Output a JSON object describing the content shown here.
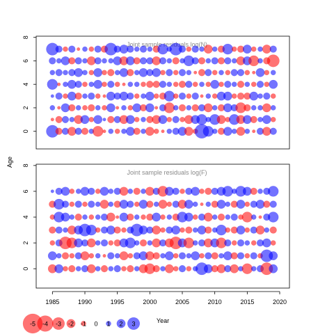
{
  "colors": {
    "negative": "#ff0000",
    "positive": "#0000ff",
    "bubble_alpha": 0.55,
    "title": "#8a8a8a",
    "frame": "#000000"
  },
  "chart_data": {
    "type": "scatter",
    "encoding": "bubble",
    "x_axis": {
      "title": "Year",
      "ticks": [
        1985,
        1990,
        1995,
        2000,
        2005,
        2010,
        2015,
        2020
      ],
      "tick_labels": [
        "1985",
        "1990",
        "1995",
        "2000",
        "2005",
        "2010",
        "2015",
        "2020"
      ],
      "range": [
        1982.5,
        2021.5
      ]
    },
    "y_axis": {
      "title": "Age"
    },
    "panels": [
      {
        "title": "Joint sample residuals log(N)",
        "ylim": [
          -1.5,
          8.1
        ],
        "y_ticks": [
          0,
          2,
          4,
          6,
          8
        ],
        "y_tick_labels": [
          "0",
          "2",
          "4",
          "6",
          "8"
        ],
        "years": [
          1985,
          1986,
          1987,
          1988,
          1989,
          1990,
          1991,
          1992,
          1993,
          1994,
          1995,
          1996,
          1997,
          1998,
          1999,
          2000,
          2001,
          2002,
          2003,
          2004,
          2005,
          2006,
          2007,
          2008,
          2009,
          2010,
          2011,
          2012,
          2013,
          2014,
          2015,
          2016,
          2017,
          2018,
          2019
        ],
        "ages": [
          0,
          1,
          2,
          3,
          4,
          5,
          6,
          7
        ],
        "residuals": [
          [
            3.0,
            -1.5,
            1.5,
            -2.0,
            1.5,
            -1.5,
            1.0,
            -2.5,
            -0.5,
            1.0,
            -1.0,
            1.0,
            2.0,
            -1.5,
            1.0,
            -2.0,
            -1.0,
            -0.5,
            1.0,
            1.5,
            2.0,
            -2.0,
            -1.0,
            3.5,
            2.5,
            1.0,
            -1.5,
            2.0,
            1.0,
            -2.0,
            1.0,
            -0.5,
            1.5,
            -2.0,
            1.5
          ],
          [
            -0.5,
            -1.5,
            1.5,
            1.0,
            -2.0,
            2.0,
            -1.0,
            2.0,
            0.5,
            -1.5,
            1.5,
            -2.0,
            2.0,
            -1.0,
            1.0,
            -1.5,
            -2.0,
            2.0,
            -1.0,
            1.5,
            -1.0,
            -2.0,
            2.0,
            2.5,
            1.0,
            2.5,
            -2.0,
            -1.0,
            2.5,
            -2.0,
            2.0,
            -1.5,
            1.0,
            2.0,
            -1.0
          ],
          [
            1.0,
            -0.5,
            2.0,
            -1.5,
            1.0,
            -1.0,
            -1.5,
            1.0,
            -1.0,
            2.0,
            -0.5,
            1.0,
            -1.0,
            2.0,
            -1.5,
            2.0,
            -0.5,
            1.5,
            -2.5,
            1.0,
            -1.5,
            1.0,
            -1.5,
            1.5,
            -2.0,
            1.0,
            -1.5,
            2.0,
            1.5,
            -2.5,
            -1.5,
            1.0,
            1.0,
            -2.0,
            1.0
          ],
          [
            0.5,
            1.5,
            -1.0,
            2.0,
            -1.5,
            1.0,
            1.5,
            -1.0,
            -0.5,
            2.0,
            1.5,
            2.0,
            1.5,
            -1.0,
            1.0,
            2.0,
            -1.0,
            -1.5,
            2.5,
            -1.0,
            1.5,
            -1.0,
            1.5,
            -0.5,
            1.0,
            -1.0,
            2.0,
            2.0,
            -1.0,
            -1.5,
            -1.5,
            2.0,
            1.0,
            1.5,
            -1.0
          ],
          [
            2.5,
            -0.5,
            1.0,
            2.0,
            1.5,
            -1.0,
            1.0,
            2.0,
            -1.0,
            1.5,
            -1.0,
            -0.5,
            1.0,
            1.0,
            -1.0,
            -1.5,
            -1.5,
            1.5,
            1.0,
            -1.0,
            -1.5,
            1.5,
            -1.0,
            1.0,
            -1.0,
            2.0,
            -1.0,
            1.5,
            1.0,
            -1.5,
            1.0,
            -1.0,
            1.5,
            -1.0,
            2.0
          ],
          [
            1.0,
            1.5,
            1.0,
            1.5,
            2.0,
            1.0,
            -1.0,
            2.0,
            -1.0,
            -1.5,
            1.0,
            2.0,
            -1.5,
            1.0,
            2.0,
            1.5,
            2.0,
            -1.0,
            1.5,
            -1.0,
            1.5,
            1.0,
            -0.5,
            -1.5,
            1.5,
            -1.0,
            1.0,
            -1.0,
            1.5,
            1.5,
            -1.0,
            -0.5,
            2.0,
            -1.0,
            1.0
          ],
          [
            1.5,
            1.0,
            2.0,
            -1.5,
            1.5,
            1.0,
            -2.0,
            1.5,
            1.0,
            1.0,
            2.0,
            -2.0,
            2.0,
            -1.5,
            1.5,
            1.5,
            -2.0,
            1.5,
            1.0,
            -1.5,
            1.0,
            2.5,
            1.5,
            -1.5,
            1.0,
            1.5,
            -1.5,
            1.5,
            1.0,
            -2.0,
            2.0,
            -2.5,
            1.0,
            -1.5,
            -3.0
          ],
          [
            3.0,
            1.5,
            -1.0,
            1.5,
            -0.5,
            1.0,
            -1.0,
            1.5,
            -1.5,
            3.0,
            1.5,
            2.0,
            1.5,
            1.0,
            1.5,
            1.0,
            -1.5,
            2.5,
            1.0,
            3.0,
            1.5,
            -1.0,
            1.5,
            1.0,
            -2.0,
            1.0,
            -1.5,
            2.5,
            -1.0,
            -1.5,
            2.0,
            -1.0,
            1.0,
            -2.0,
            1.5
          ]
        ]
      },
      {
        "title": "Joint sample residuals log(F)",
        "ylim": [
          -1.5,
          8.1
        ],
        "y_ticks": [
          0,
          2,
          4,
          6,
          8
        ],
        "y_tick_labels": [
          "0",
          "2",
          "4",
          "6",
          "8"
        ],
        "years": [
          1985,
          1986,
          1987,
          1988,
          1989,
          1990,
          1991,
          1992,
          1993,
          1994,
          1995,
          1996,
          1997,
          1998,
          1999,
          2000,
          2001,
          2002,
          2003,
          2004,
          2005,
          2006,
          2007,
          2008,
          2009,
          2010,
          2011,
          2012,
          2013,
          2014,
          2015,
          2016,
          2017,
          2018,
          2019
        ],
        "ages": [
          0,
          1,
          2,
          3,
          4,
          5,
          6
        ],
        "residuals": [
          [
            -2.0,
            2.0,
            -1.0,
            -1.5,
            1.0,
            1.5,
            -2.0,
            1.0,
            -1.5,
            1.0,
            1.5,
            -1.0,
            -1.5,
            1.0,
            -2.0,
            -2.5,
            -1.5,
            1.0,
            -2.0,
            -1.0,
            1.5,
            -1.0,
            1.0,
            3.0,
            2.0,
            -1.5,
            -2.0,
            1.5,
            -2.0,
            1.0,
            -2.5,
            1.0,
            1.5,
            -3.0,
            2.0
          ],
          [
            2.0,
            1.0,
            -1.5,
            -1.0,
            1.5,
            -2.0,
            -1.0,
            1.0,
            -0.5,
            1.5,
            1.0,
            -2.0,
            -1.0,
            1.5,
            2.0,
            -2.0,
            -1.5,
            1.0,
            2.0,
            -1.0,
            1.5,
            1.0,
            2.0,
            -1.0,
            1.5,
            -1.5,
            1.0,
            2.0,
            -1.5,
            1.5,
            -1.0,
            1.5,
            -1.0,
            3.0,
            2.0
          ],
          [
            -1.0,
            1.5,
            -3.0,
            -2.5,
            2.0,
            1.5,
            -2.0,
            1.0,
            1.5,
            -1.0,
            -1.5,
            2.0,
            2.5,
            1.0,
            -1.5,
            1.0,
            -2.0,
            1.5,
            -2.0,
            -3.0,
            2.0,
            -2.5,
            1.0,
            1.5,
            -2.0,
            2.0,
            -2.5,
            1.5,
            -1.0,
            1.5,
            1.0,
            -1.0,
            1.5,
            2.0,
            -1.0
          ],
          [
            -1.5,
            1.5,
            1.0,
            -2.0,
            2.0,
            3.0,
            2.5,
            -1.0,
            1.5,
            2.0,
            -1.5,
            -1.0,
            1.5,
            3.0,
            2.0,
            1.5,
            -2.0,
            -1.0,
            1.5,
            2.0,
            -1.0,
            -1.5,
            1.0,
            2.0,
            -1.5,
            1.0,
            2.5,
            -1.0,
            -1.5,
            2.0,
            -1.0,
            1.5,
            -2.0,
            1.0,
            -1.5
          ],
          [
            -1.0,
            2.5,
            2.0,
            1.0,
            -1.5,
            1.0,
            -1.0,
            1.0,
            1.5,
            -2.0,
            -0.5,
            2.0,
            -1.5,
            1.0,
            -1.0,
            -1.5,
            2.0,
            -1.0,
            1.0,
            -1.5,
            2.5,
            2.0,
            -1.0,
            1.5,
            -2.0,
            1.0,
            -1.5,
            1.0,
            1.5,
            -1.0,
            -2.5,
            1.0,
            -0.5,
            1.5,
            2.5
          ],
          [
            -1.5,
            2.5,
            1.5,
            -1.0,
            1.5,
            -1.0,
            1.5,
            1.0,
            -2.0,
            1.0,
            -1.5,
            2.0,
            1.5,
            -1.0,
            2.0,
            -1.5,
            1.0,
            -2.0,
            -1.0,
            1.5,
            -2.0,
            2.0,
            1.0,
            -0.5,
            1.0,
            -1.5,
            2.0,
            1.0,
            -1.5,
            2.0,
            -1.0,
            1.5,
            2.0,
            -1.5,
            1.5
          ],
          [
            0.5,
            1.5,
            2.0,
            -1.0,
            1.0,
            2.0,
            1.5,
            -1.0,
            2.0,
            1.0,
            1.5,
            -2.0,
            1.0,
            -1.5,
            1.0,
            -2.0,
            1.5,
            -2.5,
            2.0,
            1.5,
            -1.0,
            1.5,
            2.0,
            -1.0,
            -1.5,
            1.5,
            2.0,
            2.5,
            1.0,
            2.5,
            2.0,
            -1.5,
            1.0,
            1.5,
            2.5
          ]
        ]
      }
    ],
    "legend": {
      "entries": [
        {
          "label": "-5",
          "value": -5
        },
        {
          "label": "-4",
          "value": -4
        },
        {
          "label": "-3",
          "value": -3
        },
        {
          "label": "-2",
          "value": -2
        },
        {
          "label": "-1",
          "value": -1
        },
        {
          "label": "0",
          "value": 0
        },
        {
          "label": "1",
          "value": 1
        },
        {
          "label": "2",
          "value": 2
        },
        {
          "label": "3",
          "value": 3
        }
      ],
      "placement": "bottom-left"
    }
  }
}
